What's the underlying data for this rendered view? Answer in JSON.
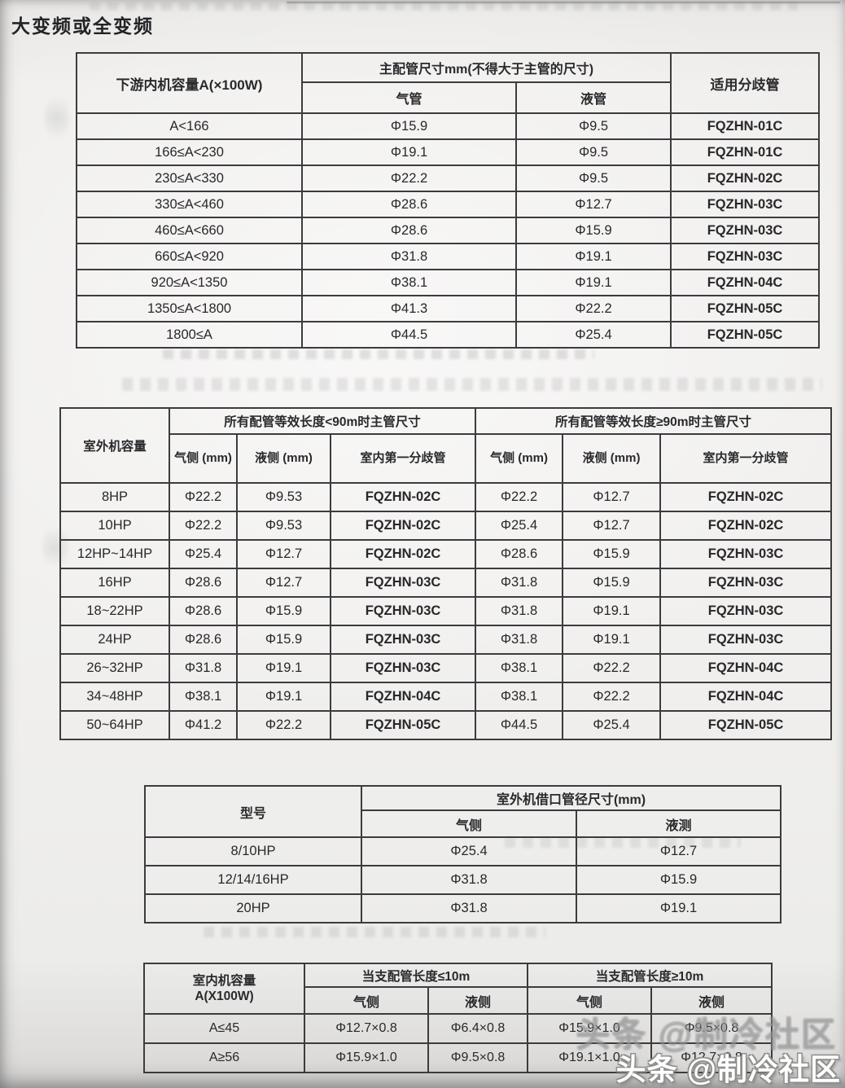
{
  "page": {
    "title": "大变频或全变频"
  },
  "colors": {
    "paper": "#efeeec",
    "table_border": "#3c3c3f",
    "text": "#28282b",
    "watermark_fill": "#ffffff",
    "watermark_outline": "#8f8f8d"
  },
  "watermark": {
    "text": "头条 @制冷社区"
  },
  "tables": {
    "t1": {
      "col1_header": "下游内机容量A(×100W)",
      "group_header": "主配管尺寸mm(不得大于主管的尺寸)",
      "sub_headers": [
        "气管",
        "液管"
      ],
      "col4_header": "适用分歧管",
      "rows": [
        [
          "A<166",
          "Φ15.9",
          "Φ9.5",
          "FQZHN-01C"
        ],
        [
          "166≤A<230",
          "Φ19.1",
          "Φ9.5",
          "FQZHN-01C"
        ],
        [
          "230≤A<330",
          "Φ22.2",
          "Φ9.5",
          "FQZHN-02C"
        ],
        [
          "330≤A<460",
          "Φ28.6",
          "Φ12.7",
          "FQZHN-03C"
        ],
        [
          "460≤A<660",
          "Φ28.6",
          "Φ15.9",
          "FQZHN-03C"
        ],
        [
          "660≤A<920",
          "Φ31.8",
          "Φ19.1",
          "FQZHN-03C"
        ],
        [
          "920≤A<1350",
          "Φ38.1",
          "Φ19.1",
          "FQZHN-04C"
        ],
        [
          "1350≤A<1800",
          "Φ41.3",
          "Φ22.2",
          "FQZHN-05C"
        ],
        [
          "1800≤A",
          "Φ44.5",
          "Φ25.4",
          "FQZHN-05C"
        ]
      ]
    },
    "t2": {
      "col1_header": "室外机容量",
      "group_headers": [
        "所有配管等效长度<90m时主管尺寸",
        "所有配管等效长度≥90m时主管尺寸"
      ],
      "sub_headers": [
        "气侧 (mm)",
        "液侧 (mm)",
        "室内第一分歧管",
        "气侧 (mm)",
        "液侧 (mm)",
        "室内第一分歧管"
      ],
      "rows": [
        [
          "8HP",
          "Φ22.2",
          "Φ9.53",
          "FQZHN-02C",
          "Φ22.2",
          "Φ12.7",
          "FQZHN-02C"
        ],
        [
          "10HP",
          "Φ22.2",
          "Φ9.53",
          "FQZHN-02C",
          "Φ25.4",
          "Φ12.7",
          "FQZHN-02C"
        ],
        [
          "12HP~14HP",
          "Φ25.4",
          "Φ12.7",
          "FQZHN-02C",
          "Φ28.6",
          "Φ15.9",
          "FQZHN-03C"
        ],
        [
          "16HP",
          "Φ28.6",
          "Φ12.7",
          "FQZHN-03C",
          "Φ31.8",
          "Φ15.9",
          "FQZHN-03C"
        ],
        [
          "18~22HP",
          "Φ28.6",
          "Φ15.9",
          "FQZHN-03C",
          "Φ31.8",
          "Φ19.1",
          "FQZHN-03C"
        ],
        [
          "24HP",
          "Φ28.6",
          "Φ15.9",
          "FQZHN-03C",
          "Φ31.8",
          "Φ19.1",
          "FQZHN-03C"
        ],
        [
          "26~32HP",
          "Φ31.8",
          "Φ19.1",
          "FQZHN-03C",
          "Φ38.1",
          "Φ22.2",
          "FQZHN-04C"
        ],
        [
          "34~48HP",
          "Φ38.1",
          "Φ19.1",
          "FQZHN-04C",
          "Φ38.1",
          "Φ22.2",
          "FQZHN-04C"
        ],
        [
          "50~64HP",
          "Φ41.2",
          "Φ22.2",
          "FQZHN-05C",
          "Φ44.5",
          "Φ25.4",
          "FQZHN-05C"
        ]
      ]
    },
    "t3": {
      "col1_header": "型号",
      "group_header": "室外机借口管径尺寸(mm)",
      "sub_headers": [
        "气侧",
        "液测"
      ],
      "rows": [
        [
          "8/10HP",
          "Φ25.4",
          "Φ12.7"
        ],
        [
          "12/14/16HP",
          "Φ31.8",
          "Φ15.9"
        ],
        [
          "20HP",
          "Φ31.8",
          "Φ19.1"
        ]
      ]
    },
    "t4": {
      "col1_header_line1": "室内机容量",
      "col1_header_line2": "A(X100W)",
      "group_headers": [
        "当支配管长度≤10m",
        "当支配管长度≥10m"
      ],
      "sub_headers": [
        "气侧",
        "液侧",
        "气侧",
        "液侧"
      ],
      "rows": [
        [
          "A≤45",
          "Φ12.7×0.8",
          "Φ6.4×0.8",
          "Φ15.9×1.0",
          "Φ9.5×0.8"
        ],
        [
          "A≥56",
          "Φ15.9×1.0",
          "Φ9.5×0.8",
          "Φ19.1×1.0",
          "Φ12.7×0.8"
        ]
      ]
    }
  }
}
